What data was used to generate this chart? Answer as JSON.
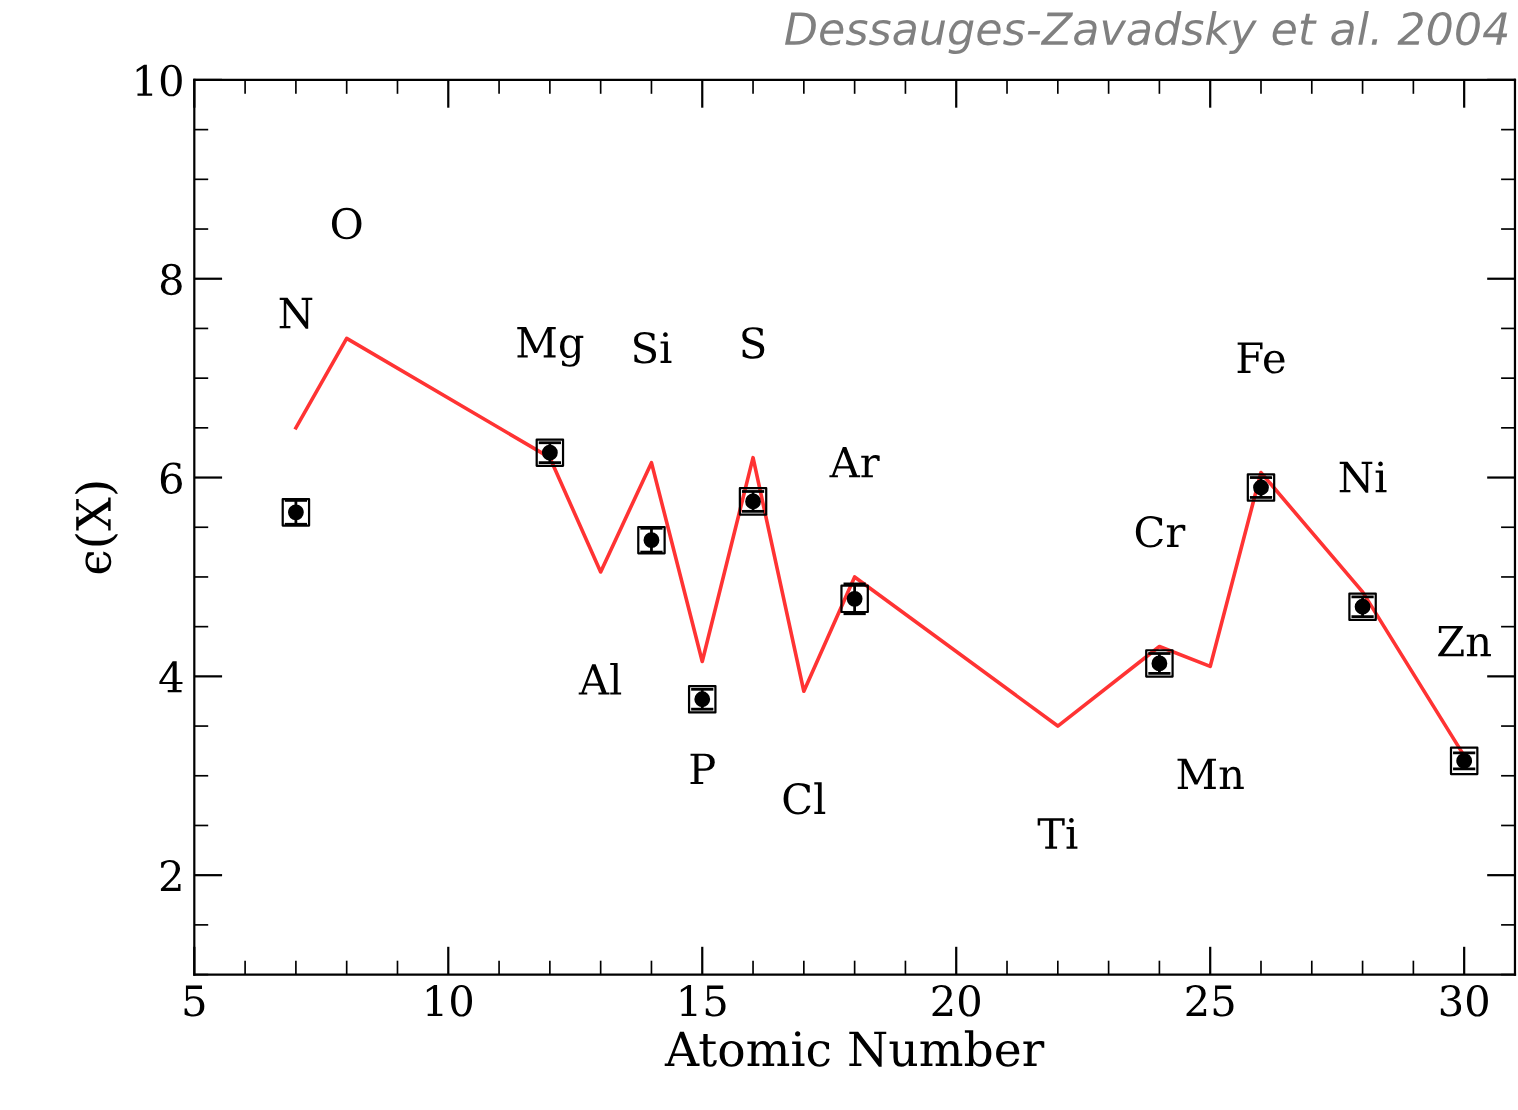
{
  "chart_data": {
    "type": "scatter",
    "xlabel": "Atomic Number",
    "ylabel": "ϵ(X)",
    "xlim": [
      5,
      31
    ],
    "ylim": [
      1,
      10
    ],
    "xticks": [
      5,
      10,
      15,
      20,
      25,
      30
    ],
    "yticks": [
      2,
      4,
      6,
      8,
      10
    ],
    "grid": false,
    "legend": false,
    "series": [
      {
        "color": "#000000",
        "marker": "circle",
        "x": [
          7,
          12,
          14,
          15,
          16,
          18,
          24,
          26,
          28,
          30
        ],
        "values": [
          5.65,
          6.25,
          5.37,
          3.77,
          5.76,
          4.78,
          4.13,
          5.9,
          4.7,
          3.15
        ],
        "errors": [
          0.12,
          0.1,
          0.12,
          0.1,
          0.1,
          0.15,
          0.1,
          0.1,
          0.1,
          0.08
        ]
      },
      {
        "type": "line",
        "color": "#ff3333",
        "marker": "none",
        "line_style": "solid",
        "x": [
          7,
          8,
          12,
          13,
          14,
          15,
          16,
          17,
          18,
          22,
          24,
          25,
          26,
          28,
          30
        ],
        "values": [
          6.5,
          7.4,
          6.2,
          5.05,
          6.15,
          4.15,
          6.2,
          3.85,
          5.0,
          3.5,
          4.3,
          4.1,
          6.05,
          4.85,
          3.2
        ]
      }
    ],
    "annotations": [
      "Dessauges-Zavadsky et al. 2004",
      {
        "text": "N",
        "x": 7,
        "y": 6.5
      },
      {
        "text": "O",
        "x": 8,
        "y": 7.4
      },
      {
        "text": "Mg",
        "x": 12,
        "y": 6.2
      },
      {
        "text": "Si",
        "x": 14,
        "y": 6.15
      },
      {
        "text": "Al",
        "x": 13,
        "y": 5.05
      },
      {
        "text": "P",
        "x": 15,
        "y": 4.15
      },
      {
        "text": "S",
        "x": 16,
        "y": 6.2
      },
      {
        "text": "Cl",
        "x": 17,
        "y": 3.85
      },
      {
        "text": "Ar",
        "x": 18,
        "y": 5.0
      },
      {
        "text": "Ti",
        "x": 22,
        "y": 3.5
      },
      {
        "text": "Cr",
        "x": 24,
        "y": 4.3
      },
      {
        "text": "Mn",
        "x": 25,
        "y": 4.1
      },
      {
        "text": "Fe",
        "x": 26,
        "y": 6.05
      },
      {
        "text": "Ni",
        "x": 28,
        "y": 4.85
      },
      {
        "text": "Zn",
        "x": 30,
        "y": 3.2
      }
    ]
  }
}
